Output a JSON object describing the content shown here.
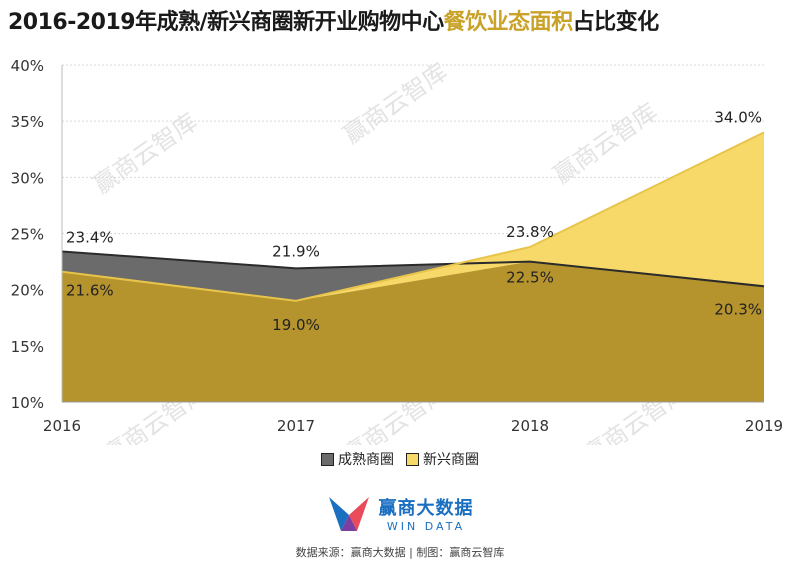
{
  "title": {
    "prefix": "2016-2019年成熟/新兴商圈新开业购物中心",
    "highlight": "餐饮业态面积",
    "suffix": "占比变化"
  },
  "legend": {
    "mature": "成熟商圈",
    "emerging": "新兴商圈"
  },
  "brand": {
    "name": "赢商大数据",
    "sub": "WIN DATA"
  },
  "watermark": "赢商云智库",
  "source": "数据来源：赢商大数据 | 制图：赢商云智库",
  "colors": {
    "mature_fill": "#6b6b6b",
    "mature_line": "#2b2b2b",
    "emerging_fill": "#f7d96a",
    "emerging_line": "#e8c44a",
    "overlap_fill": "#b5942e",
    "brand": "#1a6fc0",
    "brand_accent": "#e94b5a"
  },
  "chart_data": {
    "type": "area",
    "categories": [
      "2016",
      "2017",
      "2018",
      "2019"
    ],
    "ylim": [
      10,
      40
    ],
    "yticks": [
      "10%",
      "15%",
      "20%",
      "25%",
      "30%",
      "35%",
      "40%"
    ],
    "series": [
      {
        "name": "成熟商圈",
        "values": [
          23.4,
          21.9,
          22.5,
          20.3
        ],
        "labels": [
          "23.4%",
          "21.9%",
          "22.5%",
          "20.3%"
        ]
      },
      {
        "name": "新兴商圈",
        "values": [
          21.6,
          19.0,
          23.8,
          34.0
        ],
        "labels": [
          "21.6%",
          "19.0%",
          "23.8%",
          "34.0%"
        ]
      }
    ],
    "grid": true,
    "legend_position": "bottom"
  }
}
